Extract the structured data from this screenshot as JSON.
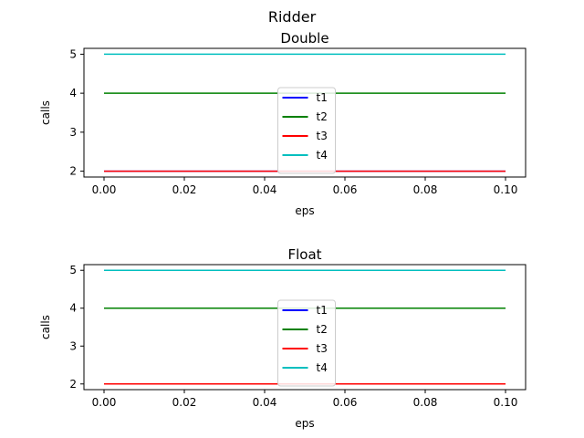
{
  "figure": {
    "suptitle": "Ridder"
  },
  "chart_data": [
    {
      "type": "line",
      "title": "Double",
      "xlabel": "eps",
      "ylabel": "calls",
      "xlim": [
        -0.005,
        0.105
      ],
      "ylim": [
        1.85,
        5.15
      ],
      "xticks": [
        "0.00",
        "0.02",
        "0.04",
        "0.06",
        "0.08",
        "0.10"
      ],
      "yticks": [
        "2",
        "3",
        "4",
        "5"
      ],
      "grid": false,
      "legend": "lower center",
      "series": [
        {
          "name": "t1",
          "color": "#0000ff",
          "x": [
            0.0,
            0.1
          ],
          "y": [
            2,
            2
          ]
        },
        {
          "name": "t2",
          "color": "#008000",
          "x": [
            0.0,
            0.1
          ],
          "y": [
            4,
            4
          ]
        },
        {
          "name": "t3",
          "color": "#ff0000",
          "x": [
            0.0,
            0.1
          ],
          "y": [
            2,
            2
          ]
        },
        {
          "name": "t4",
          "color": "#00bfbf",
          "x": [
            0.0,
            0.1
          ],
          "y": [
            5,
            5
          ]
        }
      ]
    },
    {
      "type": "line",
      "title": "Float",
      "xlabel": "eps",
      "ylabel": "calls",
      "xlim": [
        -0.005,
        0.105
      ],
      "ylim": [
        1.85,
        5.15
      ],
      "xticks": [
        "0.00",
        "0.02",
        "0.04",
        "0.06",
        "0.08",
        "0.10"
      ],
      "yticks": [
        "2",
        "3",
        "4",
        "5"
      ],
      "grid": false,
      "legend": "lower center",
      "series": [
        {
          "name": "t1",
          "color": "#0000ff",
          "x": [
            0.0,
            0.1
          ],
          "y": [
            2,
            2
          ]
        },
        {
          "name": "t2",
          "color": "#008000",
          "x": [
            0.0,
            0.1
          ],
          "y": [
            4,
            4
          ]
        },
        {
          "name": "t3",
          "color": "#ff0000",
          "x": [
            0.0,
            0.1
          ],
          "y": [
            2,
            2
          ]
        },
        {
          "name": "t4",
          "color": "#00bfbf",
          "x": [
            0.0,
            0.1
          ],
          "y": [
            5,
            5
          ]
        }
      ]
    }
  ]
}
